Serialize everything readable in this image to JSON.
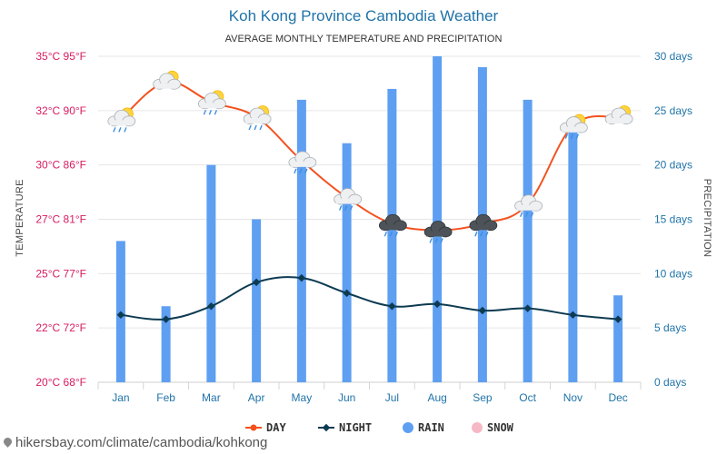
{
  "title": "Koh Kong Province Cambodia Weather",
  "subtitle": "AVERAGE MONTHLY TEMPERATURE AND PRECIPITATION",
  "footer": "hikersbay.com/climate/cambodia/kohkong",
  "colors": {
    "day": "#f4511e",
    "night": "#0d3b52",
    "rain": "#5e9ff2",
    "snow": "#f7b8c6",
    "left_axis": "#d81b60",
    "right_axis": "#1f73a8"
  },
  "chart_data": {
    "type": "bar+line",
    "categories": [
      "Jan",
      "Feb",
      "Mar",
      "Apr",
      "May",
      "Jun",
      "Jul",
      "Aug",
      "Sep",
      "Oct",
      "Nov",
      "Dec"
    ],
    "series": [
      {
        "name": "DAY",
        "type": "line",
        "axis": "left",
        "unit": "°C",
        "values": [
          32.1,
          33.8,
          32.9,
          32.2,
          30.2,
          28.5,
          27.3,
          27.0,
          27.3,
          28.2,
          31.8,
          32.2
        ]
      },
      {
        "name": "NIGHT",
        "type": "line",
        "axis": "left",
        "unit": "°C",
        "values": [
          23.1,
          22.9,
          23.5,
          24.6,
          24.8,
          24.1,
          23.5,
          23.6,
          23.3,
          23.4,
          23.1,
          22.9
        ]
      },
      {
        "name": "RAIN",
        "type": "bar",
        "axis": "right",
        "unit": "days",
        "values": [
          13,
          7,
          20,
          15,
          26,
          22,
          27,
          30,
          29,
          26,
          23,
          8
        ]
      },
      {
        "name": "SNOW",
        "type": "bar",
        "axis": "right",
        "unit": "days",
        "values": [
          0,
          0,
          0,
          0,
          0,
          0,
          0,
          0,
          0,
          0,
          0,
          0
        ]
      }
    ],
    "weather_icons": [
      "sun-cloud-rain",
      "sun-cloud",
      "sun-cloud-rain",
      "sun-cloud-rain",
      "cloud-rain",
      "cloud-rain",
      "dark-cloud-rain",
      "dark-cloud-rain",
      "dark-cloud-rain",
      "cloud-rain",
      "sun-cloud-rain",
      "sun-cloud"
    ],
    "left_axis": {
      "label": "TEMPERATURE",
      "ylim": [
        20,
        35
      ],
      "ticks": [
        {
          "value": 20,
          "label": "20°C 68°F"
        },
        {
          "value": 22.5,
          "label": "22°C 72°F"
        },
        {
          "value": 25,
          "label": "25°C 77°F"
        },
        {
          "value": 27.5,
          "label": "27°C 81°F"
        },
        {
          "value": 30,
          "label": "30°C 86°F"
        },
        {
          "value": 32.5,
          "label": "32°C 90°F"
        },
        {
          "value": 35,
          "label": "35°C 95°F"
        }
      ]
    },
    "right_axis": {
      "label": "PRECIPITATION",
      "ylim": [
        0,
        30
      ],
      "ticks": [
        {
          "value": 0,
          "label": "0 days"
        },
        {
          "value": 5,
          "label": "5 days"
        },
        {
          "value": 10,
          "label": "10 days"
        },
        {
          "value": 15,
          "label": "15 days"
        },
        {
          "value": 20,
          "label": "20 days"
        },
        {
          "value": 25,
          "label": "25 days"
        },
        {
          "value": 30,
          "label": "30 days"
        }
      ]
    },
    "grid": true,
    "legend_position": "bottom-center"
  }
}
